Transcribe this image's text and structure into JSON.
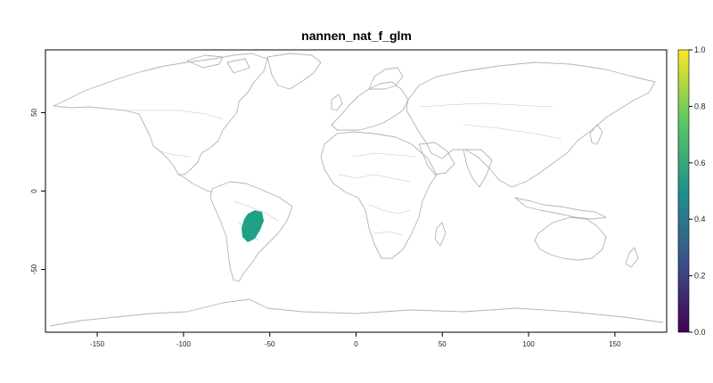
{
  "title": "nannen_nat_f_glm",
  "map": {
    "type": "raster-map",
    "x_ticks": [
      "-150",
      "-100",
      "-50",
      "0",
      "50",
      "100",
      "150"
    ],
    "y_ticks": [
      "50",
      "0",
      "-50"
    ],
    "x_tick_values": [
      -150,
      -100,
      -50,
      0,
      50,
      100,
      150
    ],
    "y_tick_values": [
      50,
      0,
      -50
    ],
    "xlim": [
      -180,
      180
    ],
    "ylim": [
      -90,
      90
    ],
    "colorbar": {
      "ticks": [
        "0.0",
        "0.2",
        "0.4",
        "0.6",
        "0.8",
        "1.0"
      ],
      "tick_values": [
        0,
        0.2,
        0.4,
        0.6,
        0.8,
        1.0
      ],
      "range": [
        0,
        1
      ],
      "palette": [
        "#440154",
        "#3b528b",
        "#21908c",
        "#5dc863",
        "#fde725"
      ]
    },
    "highlight": {
      "region": "south-central South America",
      "value": 0.55,
      "color": "#1fa187"
    }
  }
}
